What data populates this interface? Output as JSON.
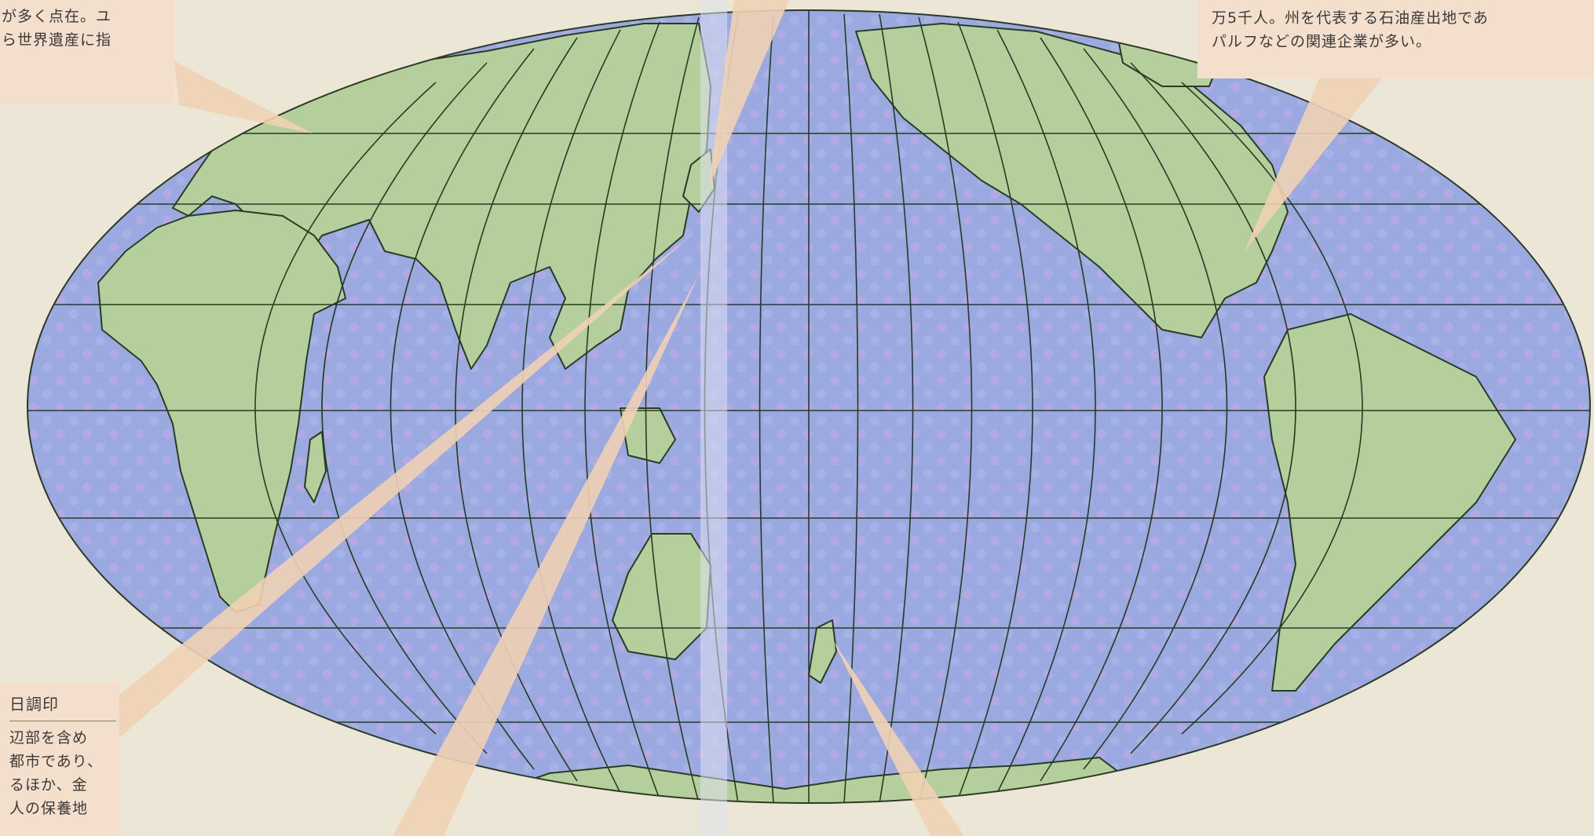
{
  "map": {
    "projection": "world map with graticule",
    "colors": {
      "ocean": "#9aa9df",
      "ocean_stipple": "#c3a9e6",
      "land": "#b5cf9c",
      "coastline": "#2b3a22",
      "graticule": "#2b3a22",
      "callout_fill": "#f4dfcc",
      "callout_ray": "#f0d2b4",
      "page_gutter": "#dfe2ee"
    }
  },
  "callouts": {
    "top_left": {
      "lines": [
        "が多く点在。ユ",
        "ら世界遺産に指"
      ]
    },
    "top_right": {
      "lines": [
        "万5千人。州を代表する石油産出地であ",
        "パルフなどの関連企業が多い。"
      ]
    },
    "bottom_left": {
      "heading": "日調印",
      "lines": [
        "辺部を含め",
        "都市であり、",
        "るほか、金",
        "人の保養地"
      ]
    }
  }
}
